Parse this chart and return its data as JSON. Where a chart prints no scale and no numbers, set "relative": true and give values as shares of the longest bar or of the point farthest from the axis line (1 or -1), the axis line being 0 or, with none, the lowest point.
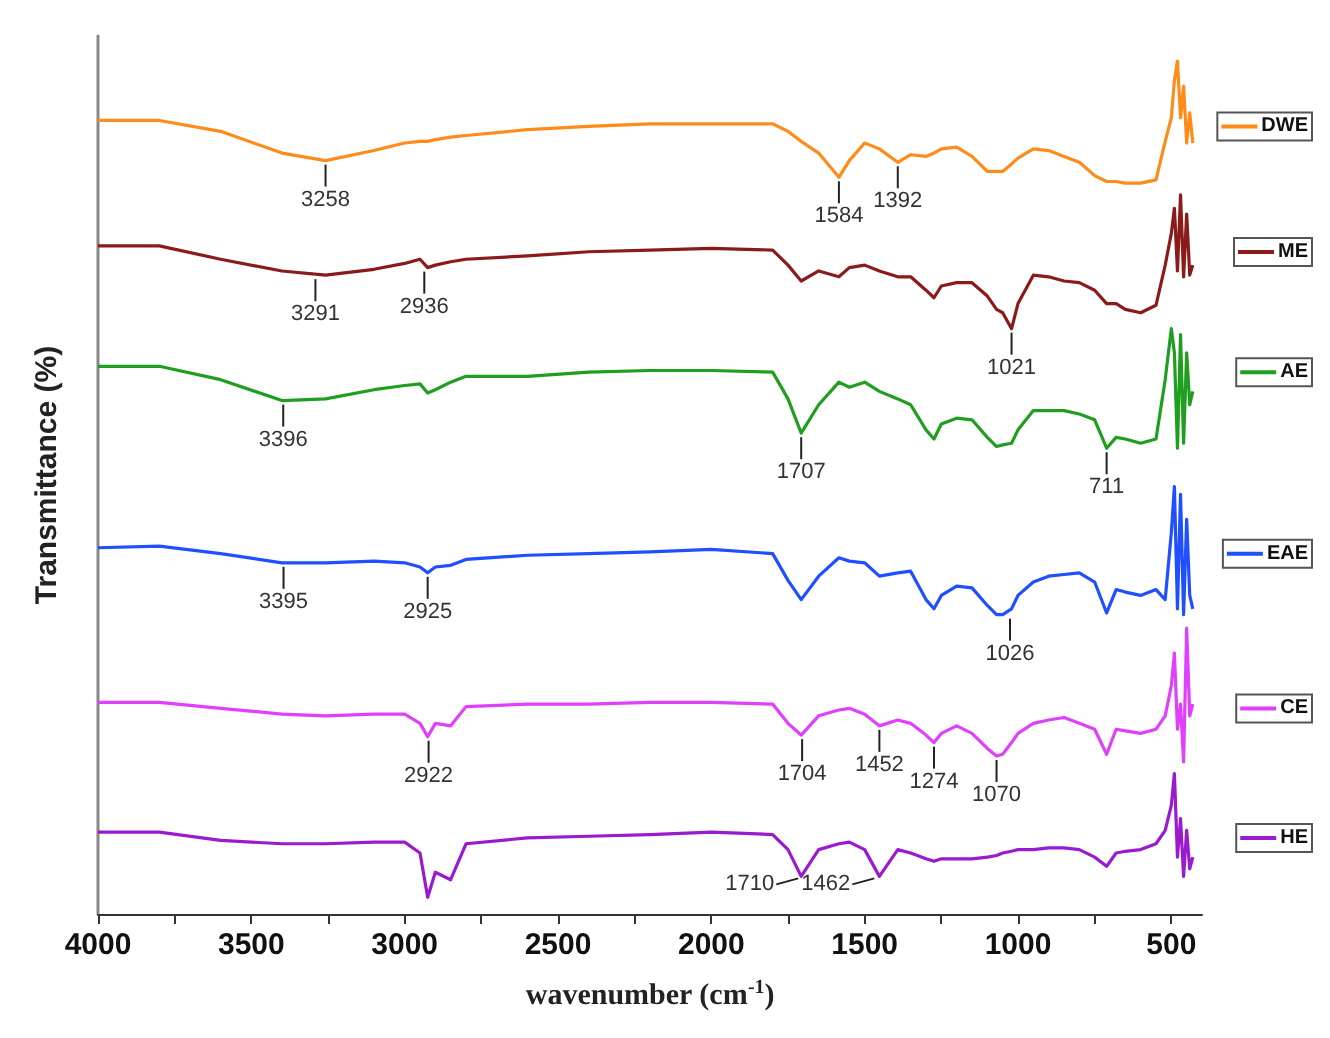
{
  "chart_data": {
    "type": "line",
    "relative": true,
    "xlabel": "wavenumber (cm$^{-1}$)",
    "ylabel": "Transmittance (%)",
    "xlim": [
      4000,
      400
    ],
    "xticks": [
      4000,
      3500,
      3000,
      2500,
      2000,
      1500,
      1000,
      500
    ],
    "legend": "right",
    "x": [
      4000,
      3800,
      3600,
      3400,
      3258,
      3100,
      3000,
      2950,
      2925,
      2900,
      2850,
      2800,
      2600,
      2400,
      2200,
      2000,
      1800,
      1750,
      1707,
      1650,
      1584,
      1550,
      1500,
      1452,
      1392,
      1350,
      1300,
      1274,
      1250,
      1200,
      1150,
      1100,
      1070,
      1050,
      1021,
      1000,
      950,
      900,
      850,
      800,
      750,
      711,
      680,
      650,
      600,
      550,
      520,
      500,
      490,
      480,
      470,
      460,
      450,
      440,
      430
    ],
    "series": [
      {
        "name": "DWE",
        "color": "#ff8c1a",
        "values": [
          0.929,
          0.929,
          0.916,
          0.89,
          0.881,
          0.893,
          0.902,
          0.904,
          0.904,
          0.906,
          0.909,
          0.911,
          0.918,
          0.922,
          0.925,
          0.925,
          0.925,
          0.916,
          0.904,
          0.89,
          0.861,
          0.881,
          0.902,
          0.895,
          0.879,
          0.888,
          0.886,
          0.89,
          0.895,
          0.897,
          0.886,
          0.868,
          0.868,
          0.868,
          0.877,
          0.884,
          0.895,
          0.893,
          0.886,
          0.879,
          0.863,
          0.856,
          0.856,
          0.854,
          0.854,
          0.858,
          0.904,
          0.932,
          0.977,
          1,
          0.932,
          0.97,
          0.902,
          0.938,
          0.902
        ]
      },
      {
        "name": "ME",
        "color": "#8b1a1a",
        "values": [
          0.779,
          0.779,
          0.763,
          0.749,
          0.744,
          0.751,
          0.758,
          0.763,
          0.753,
          0.756,
          0.76,
          0.763,
          0.767,
          0.772,
          0.774,
          0.776,
          0.774,
          0.756,
          0.737,
          0.749,
          0.742,
          0.753,
          0.756,
          0.749,
          0.742,
          0.742,
          0.726,
          0.717,
          0.731,
          0.735,
          0.735,
          0.719,
          0.703,
          0.699,
          0.68,
          0.71,
          0.744,
          0.742,
          0.737,
          0.735,
          0.726,
          0.71,
          0.71,
          0.703,
          0.699,
          0.708,
          0.756,
          0.794,
          0.824,
          0.749,
          0.84,
          0.742,
          0.817,
          0.744,
          0.756
        ]
      },
      {
        "name": "AE",
        "color": "#1f9e1f",
        "values": [
          0.635,
          0.635,
          0.619,
          0.594,
          0.596,
          0.607,
          0.612,
          0.614,
          0.603,
          0.607,
          0.616,
          0.623,
          0.623,
          0.628,
          0.63,
          0.63,
          0.628,
          0.596,
          0.555,
          0.589,
          0.616,
          0.61,
          0.616,
          0.605,
          0.596,
          0.589,
          0.559,
          0.548,
          0.566,
          0.573,
          0.571,
          0.55,
          0.539,
          0.541,
          0.543,
          0.559,
          0.582,
          0.582,
          0.582,
          0.578,
          0.571,
          0.537,
          0.55,
          0.548,
          0.543,
          0.548,
          0.619,
          0.68,
          0.651,
          0.537,
          0.673,
          0.543,
          0.651,
          0.589,
          0.605
        ]
      },
      {
        "name": "EAE",
        "color": "#1f4fff",
        "values": [
          0.418,
          0.42,
          0.411,
          0.4,
          0.4,
          0.402,
          0.4,
          0.395,
          0.388,
          0.395,
          0.397,
          0.404,
          0.409,
          0.411,
          0.413,
          0.416,
          0.411,
          0.379,
          0.356,
          0.384,
          0.406,
          0.402,
          0.4,
          0.384,
          0.388,
          0.39,
          0.356,
          0.345,
          0.361,
          0.372,
          0.37,
          0.349,
          0.338,
          0.338,
          0.345,
          0.361,
          0.377,
          0.384,
          0.386,
          0.388,
          0.377,
          0.34,
          0.368,
          0.365,
          0.361,
          0.368,
          0.356,
          0.436,
          0.491,
          0.345,
          0.482,
          0.338,
          0.452,
          0.361,
          0.345
        ]
      },
      {
        "name": "CE",
        "color": "#e040fb",
        "values": [
          0.233,
          0.233,
          0.226,
          0.219,
          0.217,
          0.219,
          0.219,
          0.208,
          0.192,
          0.208,
          0.205,
          0.228,
          0.231,
          0.231,
          0.233,
          0.233,
          0.231,
          0.208,
          0.194,
          0.217,
          0.224,
          0.226,
          0.219,
          0.205,
          0.212,
          0.208,
          0.194,
          0.185,
          0.196,
          0.205,
          0.196,
          0.178,
          0.169,
          0.171,
          0.185,
          0.196,
          0.208,
          0.212,
          0.215,
          0.208,
          0.201,
          0.171,
          0.201,
          0.199,
          0.196,
          0.201,
          0.217,
          0.253,
          0.292,
          0.201,
          0.231,
          0.162,
          0.322,
          0.217,
          0.231
        ]
      },
      {
        "name": "HE",
        "color": "#9a1ad0",
        "values": [
          0.078,
          0.078,
          0.068,
          0.064,
          0.064,
          0.066,
          0.066,
          0.053,
          0,
          0.03,
          0.021,
          0.064,
          0.071,
          0.073,
          0.075,
          0.078,
          0.075,
          0.057,
          0.025,
          0.057,
          0.064,
          0.066,
          0.057,
          0.025,
          0.057,
          0.053,
          0.046,
          0.043,
          0.046,
          0.046,
          0.046,
          0.048,
          0.05,
          0.053,
          0.055,
          0.057,
          0.057,
          0.059,
          0.059,
          0.057,
          0.048,
          0.037,
          0.053,
          0.055,
          0.057,
          0.064,
          0.08,
          0.11,
          0.148,
          0.048,
          0.094,
          0.025,
          0.08,
          0.034,
          0.048
        ]
      }
    ],
    "annotations": [
      {
        "text": "3258",
        "x": 3258,
        "y": 0.881
      },
      {
        "text": "1584",
        "x": 1584,
        "y": 0.861
      },
      {
        "text": "1392",
        "x": 1392,
        "y": 0.879
      },
      {
        "text": "3291",
        "x": 3291,
        "y": 0.744
      },
      {
        "text": "2936",
        "x": 2936,
        "y": 0.753
      },
      {
        "text": "1021",
        "x": 1021,
        "y": 0.68
      },
      {
        "text": "3396",
        "x": 3396,
        "y": 0.594
      },
      {
        "text": "1707",
        "x": 1707,
        "y": 0.555
      },
      {
        "text": "711",
        "x": 711,
        "y": 0.537
      },
      {
        "text": "3395",
        "x": 3395,
        "y": 0.4
      },
      {
        "text": "2925",
        "x": 2925,
        "y": 0.388
      },
      {
        "text": "1026",
        "x": 1026,
        "y": 0.338
      },
      {
        "text": "2922",
        "x": 2922,
        "y": 0.192
      },
      {
        "text": "1704",
        "x": 1704,
        "y": 0.194
      },
      {
        "text": "1452",
        "x": 1452,
        "y": 0.205
      },
      {
        "text": "1274",
        "x": 1274,
        "y": 0.185
      },
      {
        "text": "1070",
        "x": 1070,
        "y": 0.169
      },
      {
        "text": "1710",
        "x": 1710,
        "y": 0.025
      },
      {
        "text": "1462",
        "x": 1462,
        "y": 0.025
      }
    ]
  }
}
